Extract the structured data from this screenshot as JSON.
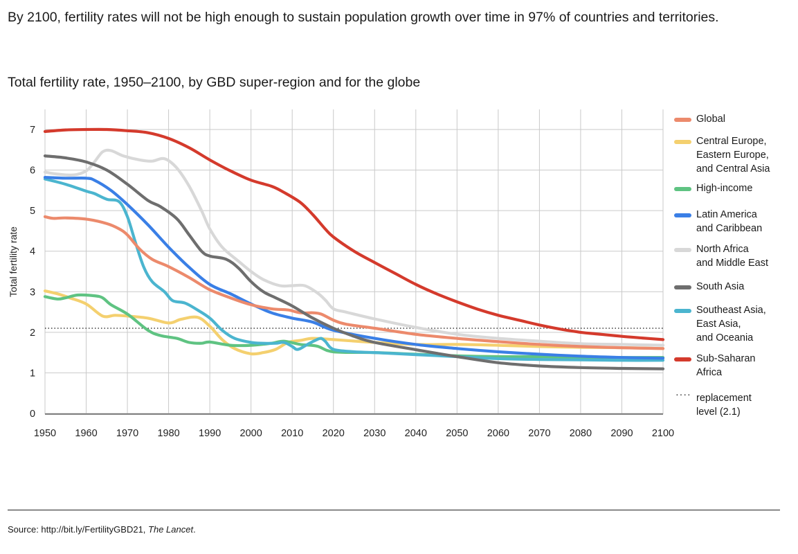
{
  "headline": "By 2100, fertility rates will not be high enough to sustain population growth over time in 97% of countries and territories.",
  "source": {
    "prefix": "Source: http://bit.ly/FertilityGBD21, ",
    "italic": "The Lancet",
    "suffix": "."
  },
  "chart_data": {
    "type": "line",
    "title": "Total fertility rate, 1950–2100, by GBD super-region and for the globe",
    "xlabel": "",
    "ylabel": "Total fertility rate",
    "xlim": [
      1950,
      2100
    ],
    "ylim": [
      0,
      7.3
    ],
    "x_ticks": [
      1950,
      1960,
      1970,
      1980,
      1990,
      2000,
      2010,
      2020,
      2030,
      2040,
      2050,
      2060,
      2070,
      2080,
      2090,
      2100
    ],
    "y_ticks": [
      0,
      1,
      2,
      3,
      4,
      5,
      6,
      7
    ],
    "grid": true,
    "legend_position": "right",
    "reference_line": {
      "label": "replacement\nlevel (2.1)",
      "value": 2.1,
      "color": "#111111",
      "style": "dotted"
    },
    "series": [
      {
        "name": "Global",
        "color": "#ec8a6c",
        "points": [
          [
            1950,
            4.85
          ],
          [
            1952,
            4.81
          ],
          [
            1955,
            4.82
          ],
          [
            1960,
            4.79
          ],
          [
            1965,
            4.68
          ],
          [
            1968,
            4.55
          ],
          [
            1970,
            4.4
          ],
          [
            1973,
            4.05
          ],
          [
            1976,
            3.8
          ],
          [
            1980,
            3.62
          ],
          [
            1985,
            3.35
          ],
          [
            1990,
            3.05
          ],
          [
            1995,
            2.85
          ],
          [
            2000,
            2.68
          ],
          [
            2005,
            2.58
          ],
          [
            2009,
            2.55
          ],
          [
            2012,
            2.48
          ],
          [
            2015,
            2.48
          ],
          [
            2017,
            2.45
          ],
          [
            2020,
            2.3
          ],
          [
            2023,
            2.2
          ],
          [
            2030,
            2.1
          ],
          [
            2040,
            1.95
          ],
          [
            2050,
            1.85
          ],
          [
            2060,
            1.77
          ],
          [
            2070,
            1.7
          ],
          [
            2080,
            1.65
          ],
          [
            2090,
            1.62
          ],
          [
            2100,
            1.6
          ]
        ]
      },
      {
        "name": "Central Europe,\nEastern Europe,\nand Central Asia",
        "color": "#f4d06f",
        "points": [
          [
            1950,
            3.02
          ],
          [
            1953,
            2.95
          ],
          [
            1956,
            2.85
          ],
          [
            1960,
            2.7
          ],
          [
            1964,
            2.4
          ],
          [
            1967,
            2.42
          ],
          [
            1970,
            2.4
          ],
          [
            1975,
            2.35
          ],
          [
            1980,
            2.23
          ],
          [
            1983,
            2.32
          ],
          [
            1987,
            2.37
          ],
          [
            1990,
            2.15
          ],
          [
            1993,
            1.82
          ],
          [
            1996,
            1.6
          ],
          [
            2000,
            1.47
          ],
          [
            2003,
            1.5
          ],
          [
            2006,
            1.58
          ],
          [
            2009,
            1.75
          ],
          [
            2012,
            1.8
          ],
          [
            2015,
            1.85
          ],
          [
            2020,
            1.82
          ],
          [
            2030,
            1.75
          ],
          [
            2040,
            1.7
          ],
          [
            2050,
            1.7
          ],
          [
            2060,
            1.68
          ],
          [
            2070,
            1.65
          ],
          [
            2080,
            1.63
          ],
          [
            2090,
            1.62
          ],
          [
            2100,
            1.6
          ]
        ]
      },
      {
        "name": "High-income",
        "color": "#5fc382",
        "points": [
          [
            1950,
            2.88
          ],
          [
            1953,
            2.82
          ],
          [
            1955,
            2.85
          ],
          [
            1958,
            2.92
          ],
          [
            1962,
            2.9
          ],
          [
            1964,
            2.85
          ],
          [
            1966,
            2.68
          ],
          [
            1970,
            2.45
          ],
          [
            1975,
            2.05
          ],
          [
            1978,
            1.92
          ],
          [
            1982,
            1.85
          ],
          [
            1985,
            1.75
          ],
          [
            1988,
            1.73
          ],
          [
            1990,
            1.76
          ],
          [
            1995,
            1.68
          ],
          [
            2000,
            1.68
          ],
          [
            2005,
            1.73
          ],
          [
            2008,
            1.78
          ],
          [
            2012,
            1.7
          ],
          [
            2016,
            1.66
          ],
          [
            2020,
            1.52
          ],
          [
            2030,
            1.5
          ],
          [
            2040,
            1.46
          ],
          [
            2050,
            1.42
          ],
          [
            2060,
            1.4
          ],
          [
            2070,
            1.4
          ],
          [
            2080,
            1.38
          ],
          [
            2090,
            1.38
          ],
          [
            2100,
            1.38
          ]
        ]
      },
      {
        "name": "Latin America\nand Caribbean",
        "color": "#3a7fe6",
        "points": [
          [
            1950,
            5.82
          ],
          [
            1955,
            5.8
          ],
          [
            1960,
            5.8
          ],
          [
            1962,
            5.75
          ],
          [
            1966,
            5.5
          ],
          [
            1970,
            5.15
          ],
          [
            1975,
            4.65
          ],
          [
            1980,
            4.1
          ],
          [
            1985,
            3.6
          ],
          [
            1990,
            3.18
          ],
          [
            1995,
            2.95
          ],
          [
            2000,
            2.7
          ],
          [
            2005,
            2.48
          ],
          [
            2010,
            2.35
          ],
          [
            2015,
            2.25
          ],
          [
            2020,
            2.05
          ],
          [
            2030,
            1.85
          ],
          [
            2040,
            1.7
          ],
          [
            2050,
            1.6
          ],
          [
            2060,
            1.52
          ],
          [
            2070,
            1.46
          ],
          [
            2080,
            1.41
          ],
          [
            2090,
            1.38
          ],
          [
            2100,
            1.36
          ]
        ]
      },
      {
        "name": "North Africa\nand Middle East",
        "color": "#d8d8d8",
        "points": [
          [
            1950,
            5.95
          ],
          [
            1953,
            5.9
          ],
          [
            1957,
            5.88
          ],
          [
            1960,
            5.98
          ],
          [
            1962,
            6.2
          ],
          [
            1964,
            6.45
          ],
          [
            1966,
            6.48
          ],
          [
            1969,
            6.35
          ],
          [
            1973,
            6.25
          ],
          [
            1976,
            6.22
          ],
          [
            1979,
            6.28
          ],
          [
            1982,
            6.05
          ],
          [
            1985,
            5.6
          ],
          [
            1988,
            5.0
          ],
          [
            1990,
            4.55
          ],
          [
            1993,
            4.1
          ],
          [
            1997,
            3.75
          ],
          [
            2000,
            3.5
          ],
          [
            2003,
            3.3
          ],
          [
            2007,
            3.15
          ],
          [
            2010,
            3.15
          ],
          [
            2013,
            3.15
          ],
          [
            2016,
            2.98
          ],
          [
            2018,
            2.8
          ],
          [
            2020,
            2.58
          ],
          [
            2023,
            2.5
          ],
          [
            2030,
            2.33
          ],
          [
            2040,
            2.12
          ],
          [
            2050,
            1.95
          ],
          [
            2060,
            1.85
          ],
          [
            2070,
            1.78
          ],
          [
            2080,
            1.72
          ],
          [
            2090,
            1.7
          ],
          [
            2100,
            1.68
          ]
        ]
      },
      {
        "name": "South Asia",
        "color": "#6e6e6e",
        "points": [
          [
            1950,
            6.35
          ],
          [
            1955,
            6.3
          ],
          [
            1960,
            6.2
          ],
          [
            1965,
            6.0
          ],
          [
            1970,
            5.65
          ],
          [
            1975,
            5.25
          ],
          [
            1978,
            5.1
          ],
          [
            1982,
            4.8
          ],
          [
            1985,
            4.4
          ],
          [
            1988,
            4.0
          ],
          [
            1990,
            3.88
          ],
          [
            1994,
            3.8
          ],
          [
            1997,
            3.58
          ],
          [
            2000,
            3.25
          ],
          [
            2003,
            3.0
          ],
          [
            2006,
            2.85
          ],
          [
            2010,
            2.65
          ],
          [
            2015,
            2.35
          ],
          [
            2020,
            2.1
          ],
          [
            2025,
            1.9
          ],
          [
            2030,
            1.75
          ],
          [
            2040,
            1.57
          ],
          [
            2050,
            1.4
          ],
          [
            2060,
            1.25
          ],
          [
            2070,
            1.17
          ],
          [
            2080,
            1.13
          ],
          [
            2090,
            1.11
          ],
          [
            2100,
            1.1
          ]
        ]
      },
      {
        "name": "Southeast Asia,\nEast Asia,\nand Oceania",
        "color": "#4bb5cf",
        "points": [
          [
            1950,
            5.78
          ],
          [
            1955,
            5.65
          ],
          [
            1960,
            5.48
          ],
          [
            1962,
            5.42
          ],
          [
            1965,
            5.28
          ],
          [
            1968,
            5.22
          ],
          [
            1970,
            4.85
          ],
          [
            1972,
            4.2
          ],
          [
            1974,
            3.6
          ],
          [
            1976,
            3.25
          ],
          [
            1979,
            3.0
          ],
          [
            1981,
            2.78
          ],
          [
            1984,
            2.72
          ],
          [
            1987,
            2.55
          ],
          [
            1990,
            2.35
          ],
          [
            1993,
            2.05
          ],
          [
            1996,
            1.85
          ],
          [
            2000,
            1.75
          ],
          [
            2003,
            1.73
          ],
          [
            2006,
            1.73
          ],
          [
            2008,
            1.75
          ],
          [
            2010,
            1.65
          ],
          [
            2011,
            1.58
          ],
          [
            2012,
            1.6
          ],
          [
            2014,
            1.72
          ],
          [
            2016,
            1.82
          ],
          [
            2017,
            1.85
          ],
          [
            2018,
            1.78
          ],
          [
            2020,
            1.58
          ],
          [
            2025,
            1.52
          ],
          [
            2030,
            1.5
          ],
          [
            2040,
            1.45
          ],
          [
            2050,
            1.4
          ],
          [
            2060,
            1.35
          ],
          [
            2070,
            1.33
          ],
          [
            2080,
            1.32
          ],
          [
            2090,
            1.31
          ],
          [
            2100,
            1.31
          ]
        ]
      },
      {
        "name": "Sub-Saharan\nAfrica",
        "color": "#d43a2c",
        "points": [
          [
            1950,
            6.95
          ],
          [
            1955,
            6.99
          ],
          [
            1960,
            7.0
          ],
          [
            1965,
            7.0
          ],
          [
            1970,
            6.97
          ],
          [
            1975,
            6.92
          ],
          [
            1980,
            6.78
          ],
          [
            1985,
            6.55
          ],
          [
            1990,
            6.25
          ],
          [
            1995,
            5.98
          ],
          [
            2000,
            5.75
          ],
          [
            2005,
            5.6
          ],
          [
            2008,
            5.45
          ],
          [
            2012,
            5.2
          ],
          [
            2015,
            4.9
          ],
          [
            2018,
            4.55
          ],
          [
            2020,
            4.35
          ],
          [
            2025,
            4.0
          ],
          [
            2030,
            3.72
          ],
          [
            2035,
            3.45
          ],
          [
            2040,
            3.18
          ],
          [
            2045,
            2.95
          ],
          [
            2050,
            2.75
          ],
          [
            2055,
            2.57
          ],
          [
            2060,
            2.42
          ],
          [
            2065,
            2.3
          ],
          [
            2070,
            2.18
          ],
          [
            2075,
            2.08
          ],
          [
            2080,
            2.0
          ],
          [
            2085,
            1.95
          ],
          [
            2090,
            1.9
          ],
          [
            2095,
            1.86
          ],
          [
            2100,
            1.82
          ]
        ]
      }
    ]
  }
}
